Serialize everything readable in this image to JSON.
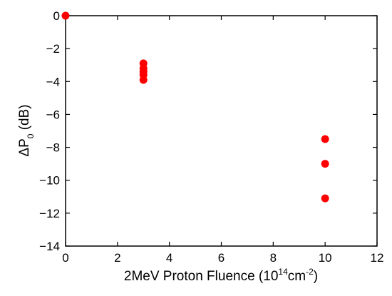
{
  "chart_data": {
    "type": "scatter",
    "title": "",
    "xlabel": {
      "main": "2MeV Proton Fluence (10",
      "exp1": "14",
      "mid": "cm",
      "exp2": "-2",
      "end": ")"
    },
    "ylabel": {
      "main": "ΔP",
      "sub": "0",
      "unit": " (dB)"
    },
    "xlim": [
      0,
      12
    ],
    "ylim": [
      -14,
      0
    ],
    "xticks": [
      0,
      2,
      4,
      6,
      8,
      10,
      12
    ],
    "yticks": [
      0,
      -2,
      -4,
      -6,
      -8,
      -10,
      -12,
      -14
    ],
    "xtick_labels": [
      "0",
      "2",
      "4",
      "6",
      "8",
      "10",
      "12"
    ],
    "ytick_labels": [
      "0",
      "−2",
      "−4",
      "−6",
      "−8",
      "−10",
      "−12",
      "−14"
    ],
    "grid": false,
    "legend": "none",
    "series": [
      {
        "color": "#ff0000",
        "points": [
          {
            "x": 0,
            "y": 0
          },
          {
            "x": 3,
            "y": -2.9
          },
          {
            "x": 3,
            "y": -3.2
          },
          {
            "x": 3,
            "y": -3.4
          },
          {
            "x": 3,
            "y": -3.6
          },
          {
            "x": 3,
            "y": -3.9
          },
          {
            "x": 10,
            "y": -7.5
          },
          {
            "x": 10,
            "y": -9.0
          },
          {
            "x": 10,
            "y": -11.1
          }
        ]
      }
    ]
  }
}
